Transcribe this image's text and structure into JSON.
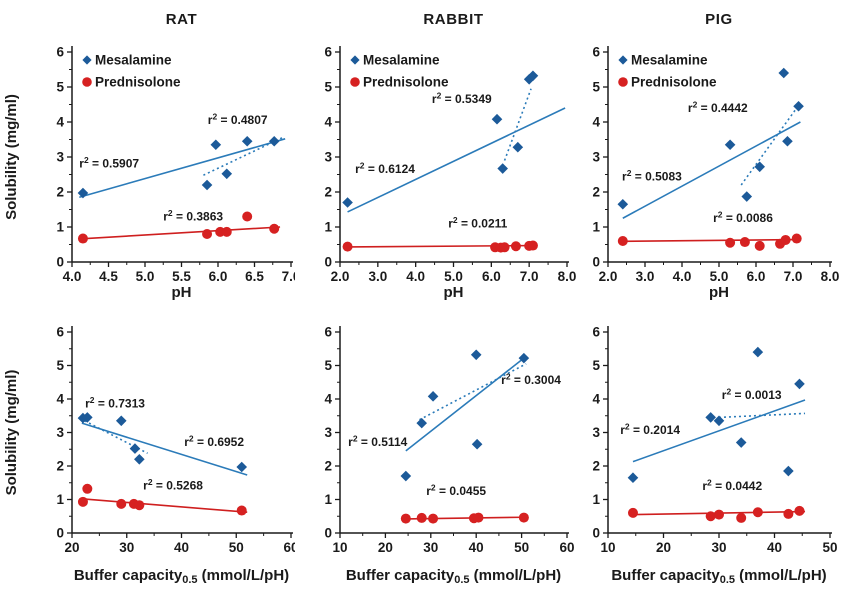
{
  "figure": {
    "colors": {
      "axis_text": "#1a1a1a",
      "mesalamine_marker": "#1c5a99",
      "mesalamine_line": "#2b7bb9",
      "mesalamine_text": "#2e86c8",
      "prednisolone_marker": "#d62121",
      "prednisolone_line": "#cf1f1f",
      "prednisolone_text": "#e01e1e"
    },
    "series_legend": [
      {
        "name": "Mesalamine",
        "marker": "diamond"
      },
      {
        "name": "Prednisolone",
        "marker": "circle"
      }
    ]
  },
  "chart_data": [
    {
      "type": "scatter",
      "title": "RAT",
      "xlabel": {
        "pre": "pH",
        "sub": "",
        "post": ""
      },
      "ylabel": "Solubility (mg/ml)",
      "xlim": [
        4.0,
        7.0
      ],
      "xticks": [
        4.0,
        4.5,
        5.0,
        5.5,
        6.0,
        6.5,
        7.0
      ],
      "xtick_labels": [
        "4.0",
        "4.5",
        "5.0",
        "5.5",
        "6.0",
        "6.5",
        "7.0"
      ],
      "ylim": [
        0,
        6
      ],
      "yticks": [
        0,
        1,
        2,
        3,
        4,
        5,
        6
      ],
      "ytick_labels": [
        "0",
        "1",
        "2",
        "3",
        "4",
        "5",
        "6"
      ],
      "show_legend": true,
      "series": [
        {
          "name": "Mesalamine",
          "marker": "diamond",
          "points": [
            [
              4.15,
              1.97
            ],
            [
              5.85,
              2.2
            ],
            [
              5.97,
              3.35
            ],
            [
              6.12,
              2.52
            ],
            [
              6.4,
              3.45
            ],
            [
              6.77,
              3.45
            ]
          ],
          "solid_trend": [
            [
              4.1,
              1.85
            ],
            [
              6.92,
              3.52
            ]
          ],
          "dotted_trend": [
            [
              5.8,
              2.48
            ],
            [
              6.88,
              3.55
            ]
          ]
        },
        {
          "name": "Prednisolone",
          "marker": "circle",
          "points": [
            [
              4.15,
              0.67
            ],
            [
              5.85,
              0.8
            ],
            [
              6.03,
              0.86
            ],
            [
              6.12,
              0.86
            ],
            [
              6.4,
              1.3
            ],
            [
              6.77,
              0.95
            ]
          ],
          "solid_trend": [
            [
              4.1,
              0.66
            ],
            [
              6.85,
              1.0
            ]
          ]
        }
      ],
      "annotations": [
        {
          "text": "r² = 0.5907",
          "x": 4.1,
          "y": 2.7,
          "color": "black"
        },
        {
          "text": "r² = 0.4807",
          "x": 5.86,
          "y": 3.95,
          "color": "blue"
        },
        {
          "text": "r² = 0.3863",
          "x": 5.25,
          "y": 1.18,
          "color": "red"
        }
      ]
    },
    {
      "type": "scatter",
      "title": "RABBIT",
      "xlabel": {
        "pre": "pH",
        "sub": "",
        "post": ""
      },
      "ylabel": "",
      "xlim": [
        2.0,
        8.0
      ],
      "xticks": [
        2.0,
        3.0,
        4.0,
        5.0,
        6.0,
        7.0,
        8.0
      ],
      "xtick_labels": [
        "2.0",
        "3.0",
        "4.0",
        "5.0",
        "6.0",
        "7.0",
        "8.0"
      ],
      "ylim": [
        0,
        6
      ],
      "yticks": [
        0,
        1,
        2,
        3,
        4,
        5,
        6
      ],
      "ytick_labels": [
        "0",
        "1",
        "2",
        "3",
        "4",
        "5",
        "6"
      ],
      "show_legend": true,
      "series": [
        {
          "name": "Mesalamine",
          "marker": "diamond",
          "points": [
            [
              2.2,
              1.7
            ],
            [
              6.15,
              4.08
            ],
            [
              6.3,
              2.67
            ],
            [
              6.7,
              3.28
            ],
            [
              7.0,
              5.22
            ],
            [
              7.1,
              5.32
            ]
          ],
          "solid_trend": [
            [
              2.2,
              1.43
            ],
            [
              7.95,
              4.4
            ]
          ],
          "dotted_trend": [
            [
              6.35,
              2.9
            ],
            [
              7.05,
              4.95
            ]
          ]
        },
        {
          "name": "Prednisolone",
          "marker": "circle",
          "points": [
            [
              2.2,
              0.44
            ],
            [
              6.1,
              0.42
            ],
            [
              6.25,
              0.41
            ],
            [
              6.35,
              0.42
            ],
            [
              6.65,
              0.45
            ],
            [
              7.0,
              0.46
            ],
            [
              7.1,
              0.47
            ]
          ],
          "solid_trend": [
            [
              2.2,
              0.43
            ],
            [
              7.15,
              0.47
            ]
          ]
        }
      ],
      "annotations": [
        {
          "text": "r² = 0.6124",
          "x": 2.4,
          "y": 2.55,
          "color": "black"
        },
        {
          "text": "r² = 0.5349",
          "x": 4.43,
          "y": 4.55,
          "color": "blue"
        },
        {
          "text": "r² = 0.0211",
          "x": 4.86,
          "y": 0.98,
          "color": "red"
        }
      ]
    },
    {
      "type": "scatter",
      "title": "PIG",
      "xlabel": {
        "pre": "pH",
        "sub": "",
        "post": ""
      },
      "ylabel": "",
      "xlim": [
        2.0,
        8.0
      ],
      "xticks": [
        2.0,
        3.0,
        4.0,
        5.0,
        6.0,
        7.0,
        8.0
      ],
      "xtick_labels": [
        "2.0",
        "3.0",
        "4.0",
        "5.0",
        "6.0",
        "7.0",
        "8.0"
      ],
      "ylim": [
        0,
        6
      ],
      "yticks": [
        0,
        1,
        2,
        3,
        4,
        5,
        6
      ],
      "ytick_labels": [
        "0",
        "1",
        "2",
        "3",
        "4",
        "5",
        "6"
      ],
      "show_legend": true,
      "series": [
        {
          "name": "Mesalamine",
          "marker": "diamond",
          "points": [
            [
              2.4,
              1.65
            ],
            [
              5.3,
              3.35
            ],
            [
              5.75,
              1.87
            ],
            [
              6.1,
              2.72
            ],
            [
              6.75,
              5.4
            ],
            [
              6.85,
              3.45
            ],
            [
              7.15,
              4.45
            ]
          ],
          "solid_trend": [
            [
              2.4,
              1.25
            ],
            [
              7.2,
              4.0
            ]
          ],
          "dotted_trend": [
            [
              5.6,
              2.2
            ],
            [
              7.1,
              4.4
            ]
          ]
        },
        {
          "name": "Prednisolone",
          "marker": "circle",
          "points": [
            [
              2.4,
              0.6
            ],
            [
              5.3,
              0.55
            ],
            [
              5.7,
              0.57
            ],
            [
              6.1,
              0.46
            ],
            [
              6.65,
              0.52
            ],
            [
              6.8,
              0.63
            ],
            [
              7.1,
              0.67
            ]
          ],
          "solid_trend": [
            [
              2.4,
              0.59
            ],
            [
              7.15,
              0.64
            ]
          ]
        }
      ],
      "annotations": [
        {
          "text": "r² = 0.5083",
          "x": 2.38,
          "y": 2.33,
          "color": "black"
        },
        {
          "text": "r² = 0.4442",
          "x": 4.16,
          "y": 4.28,
          "color": "blue"
        },
        {
          "text": "r² = 0.0086",
          "x": 4.84,
          "y": 1.14,
          "color": "red"
        }
      ]
    },
    {
      "type": "scatter",
      "title": "",
      "xlabel": {
        "pre": "Buffer capacity",
        "sub": "0.5",
        "post": " (mmol/L/pH)"
      },
      "ylabel": "Solubility (mg/ml)",
      "xlim": [
        20,
        60
      ],
      "xticks": [
        20,
        30,
        40,
        50,
        60
      ],
      "xtick_labels": [
        "20",
        "30",
        "40",
        "50",
        "60"
      ],
      "ylim": [
        0,
        6
      ],
      "yticks": [
        0,
        1,
        2,
        3,
        4,
        5,
        6
      ],
      "ytick_labels": [
        "0",
        "1",
        "2",
        "3",
        "4",
        "5",
        "6"
      ],
      "show_legend": false,
      "series": [
        {
          "name": "Mesalamine",
          "marker": "diamond",
          "points": [
            [
              22.0,
              3.43
            ],
            [
              22.8,
              3.45
            ],
            [
              29.0,
              3.35
            ],
            [
              31.5,
              2.52
            ],
            [
              32.3,
              2.2
            ],
            [
              51.0,
              1.97
            ]
          ],
          "solid_trend": [
            [
              21.8,
              3.28
            ],
            [
              52.0,
              1.73
            ]
          ],
          "dotted_trend": [
            [
              22.3,
              3.35
            ],
            [
              33.8,
              2.38
            ]
          ]
        },
        {
          "name": "Prednisolone",
          "marker": "circle",
          "points": [
            [
              22.0,
              0.93
            ],
            [
              22.8,
              1.32
            ],
            [
              29.0,
              0.87
            ],
            [
              31.3,
              0.87
            ],
            [
              32.3,
              0.83
            ],
            [
              51.0,
              0.67
            ]
          ],
          "solid_trend": [
            [
              21.8,
              1.02
            ],
            [
              52.0,
              0.62
            ]
          ]
        }
      ],
      "annotations": [
        {
          "text": "r² = 0.7313",
          "x": 22.4,
          "y": 3.75,
          "color": "blue"
        },
        {
          "text": "r² = 0.6952",
          "x": 40.5,
          "y": 2.6,
          "color": "black"
        },
        {
          "text": "r² = 0.5268",
          "x": 33.0,
          "y": 1.3,
          "color": "red"
        }
      ]
    },
    {
      "type": "scatter",
      "title": "",
      "xlabel": {
        "pre": "Buffer capacity",
        "sub": "0.5",
        "post": " (mmol/L/pH)"
      },
      "ylabel": "",
      "xlim": [
        10,
        60
      ],
      "xticks": [
        10,
        20,
        30,
        40,
        50,
        60
      ],
      "xtick_labels": [
        "10",
        "20",
        "30",
        "40",
        "50",
        "60"
      ],
      "ylim": [
        0,
        6
      ],
      "yticks": [
        0,
        1,
        2,
        3,
        4,
        5,
        6
      ],
      "ytick_labels": [
        "0",
        "1",
        "2",
        "3",
        "4",
        "5",
        "6"
      ],
      "show_legend": false,
      "series": [
        {
          "name": "Mesalamine",
          "marker": "diamond",
          "points": [
            [
              24.5,
              1.7
            ],
            [
              28.0,
              3.28
            ],
            [
              30.5,
              4.08
            ],
            [
              40.0,
              5.32
            ],
            [
              40.2,
              2.65
            ],
            [
              50.5,
              5.22
            ]
          ],
          "solid_trend": [
            [
              24.5,
              2.45
            ],
            [
              50.5,
              5.22
            ]
          ],
          "dotted_trend": [
            [
              27.5,
              3.38
            ],
            [
              51.0,
              5.05
            ]
          ]
        },
        {
          "name": "Prednisolone",
          "marker": "circle",
          "points": [
            [
              24.5,
              0.43
            ],
            [
              28.0,
              0.45
            ],
            [
              30.5,
              0.43
            ],
            [
              39.5,
              0.44
            ],
            [
              40.5,
              0.46
            ],
            [
              50.5,
              0.46
            ]
          ],
          "solid_trend": [
            [
              24.5,
              0.42
            ],
            [
              50.5,
              0.47
            ]
          ]
        }
      ],
      "annotations": [
        {
          "text": "r² = 0.5114",
          "x": 11.8,
          "y": 2.6,
          "color": "black"
        },
        {
          "text": "r² = 0.3004",
          "x": 45.5,
          "y": 4.45,
          "color": "blue"
        },
        {
          "text": "r² = 0.0455",
          "x": 29.0,
          "y": 1.13,
          "color": "red"
        }
      ]
    },
    {
      "type": "scatter",
      "title": "",
      "xlabel": {
        "pre": "Buffer capacity",
        "sub": "0.5",
        "post": " (mmol/L/pH)"
      },
      "ylabel": "",
      "xlim": [
        10,
        50
      ],
      "xticks": [
        10,
        20,
        30,
        40,
        50
      ],
      "xtick_labels": [
        "10",
        "20",
        "30",
        "40",
        "50"
      ],
      "ylim": [
        0,
        6
      ],
      "yticks": [
        0,
        1,
        2,
        3,
        4,
        5,
        6
      ],
      "ytick_labels": [
        "0",
        "1",
        "2",
        "3",
        "4",
        "5",
        "6"
      ],
      "show_legend": false,
      "series": [
        {
          "name": "Mesalamine",
          "marker": "diamond",
          "points": [
            [
              14.5,
              1.65
            ],
            [
              28.5,
              3.45
            ],
            [
              30.0,
              3.35
            ],
            [
              34.0,
              2.7
            ],
            [
              37.0,
              5.4
            ],
            [
              42.5,
              1.85
            ],
            [
              44.5,
              4.45
            ]
          ],
          "solid_trend": [
            [
              14.5,
              2.13
            ],
            [
              45.5,
              3.97
            ]
          ],
          "dotted_trend": [
            [
              30.0,
              3.45
            ],
            [
              45.5,
              3.57
            ]
          ]
        },
        {
          "name": "Prednisolone",
          "marker": "circle",
          "points": [
            [
              14.5,
              0.6
            ],
            [
              28.5,
              0.5
            ],
            [
              30.0,
              0.55
            ],
            [
              34.0,
              0.45
            ],
            [
              37.0,
              0.62
            ],
            [
              42.5,
              0.57
            ],
            [
              44.5,
              0.66
            ]
          ],
          "solid_trend": [
            [
              14.5,
              0.55
            ],
            [
              45.5,
              0.64
            ]
          ]
        }
      ],
      "annotations": [
        {
          "text": "r² = 0.2014",
          "x": 12.2,
          "y": 2.95,
          "color": "black"
        },
        {
          "text": "r² = 0.0013",
          "x": 30.5,
          "y": 4.0,
          "color": "blue"
        },
        {
          "text": "r² = 0.0442",
          "x": 27.0,
          "y": 1.28,
          "color": "red"
        }
      ]
    }
  ]
}
